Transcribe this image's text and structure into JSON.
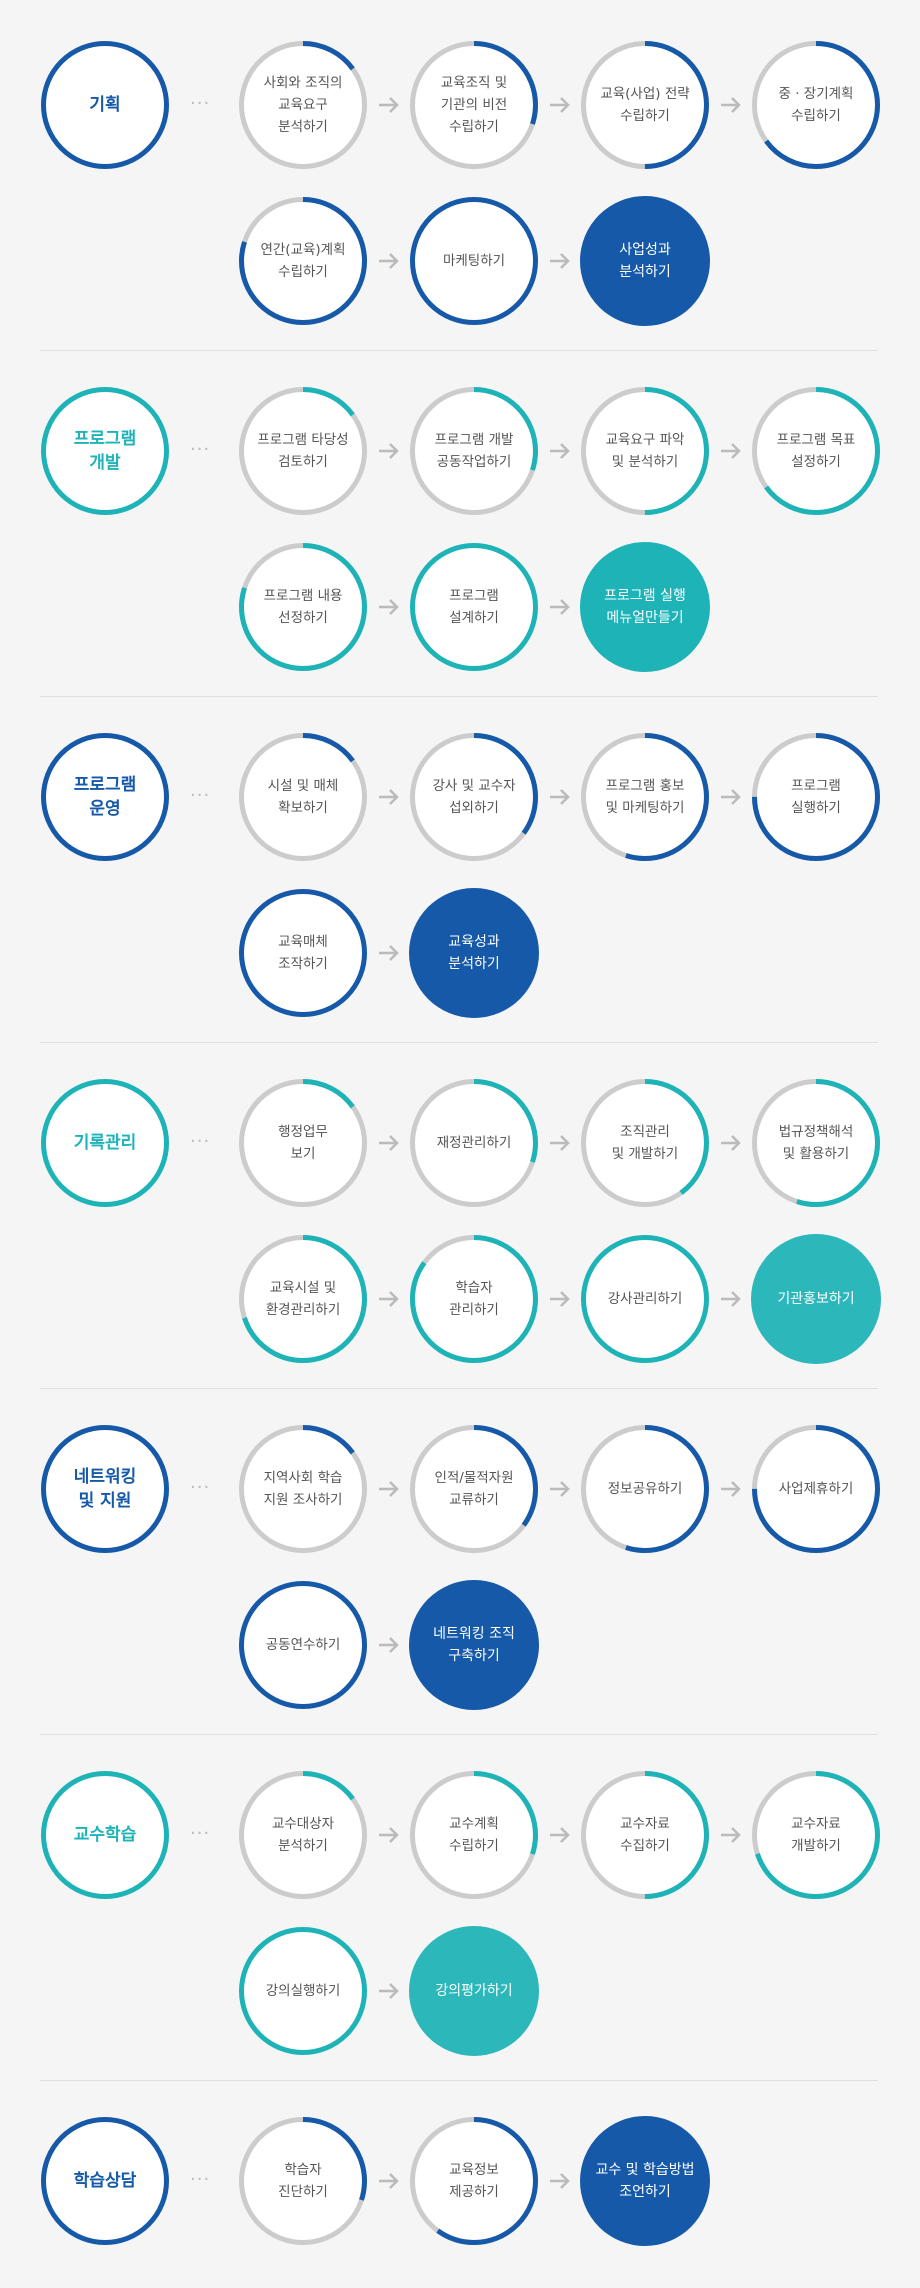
{
  "colors": {
    "dark_blue": "#1559a8",
    "teal": "#1db3b7",
    "teal_light": "#2cb7bb",
    "ring_gray": "#cccccc",
    "background": "#f5f5f5",
    "arrow": "#bbbbbb"
  },
  "icons": {
    "arrow": "right-arrow-icon",
    "dots": "ellipsis-icon"
  },
  "sections": [
    {
      "id": "planning",
      "title": "기획",
      "color": "dark_blue",
      "steps": [
        {
          "label": "사회와 조직의\n교육요구\n분석하기",
          "progress": 0.15
        },
        {
          "label": "교육조직 및\n기관의 비전\n수립하기",
          "progress": 0.3
        },
        {
          "label": "교육(사업) 전략\n수립하기",
          "progress": 0.5
        },
        {
          "label": "중 · 장기계획\n수립하기",
          "progress": 0.65
        },
        {
          "label": "연간(교육)계획\n수립하기",
          "progress": 0.8
        },
        {
          "label": "마케팅하기",
          "progress": 1.0
        },
        {
          "label": "사업성과\n분석하기",
          "filled": true
        }
      ]
    },
    {
      "id": "program-dev",
      "title": "프로그램\n개발",
      "color": "teal",
      "steps": [
        {
          "label": "프로그램 타당성\n검토하기",
          "progress": 0.15
        },
        {
          "label": "프로그램 개발\n공동작업하기",
          "progress": 0.3
        },
        {
          "label": "교육요구 파악\n및 분석하기",
          "progress": 0.5
        },
        {
          "label": "프로그램 목표\n설정하기",
          "progress": 0.65
        },
        {
          "label": "프로그램 내용\n선정하기",
          "progress": 0.8
        },
        {
          "label": "프로그램\n설계하기",
          "progress": 1.0
        },
        {
          "label": "프로그램 실행\n메뉴얼만들기",
          "filled": true
        }
      ]
    },
    {
      "id": "program-ops",
      "title": "프로그램\n운영",
      "color": "dark_blue",
      "steps": [
        {
          "label": "시설 및 매체\n확보하기",
          "progress": 0.15
        },
        {
          "label": "강사 및 교수자\n섭외하기",
          "progress": 0.35
        },
        {
          "label": "프로그램 홍보\n및 마케팅하기",
          "progress": 0.55
        },
        {
          "label": "프로그램\n실행하기",
          "progress": 0.75
        },
        {
          "label": "교육매체\n조작하기",
          "progress": 1.0
        },
        {
          "label": "교육성과\n분석하기",
          "filled": true
        }
      ]
    },
    {
      "id": "records",
      "title": "기록관리",
      "color": "teal",
      "steps": [
        {
          "label": "행정업무\n보기",
          "progress": 0.15
        },
        {
          "label": "재정관리하기",
          "progress": 0.3
        },
        {
          "label": "조직관리\n및 개발하기",
          "progress": 0.4
        },
        {
          "label": "법규정책해석\n및 활용하기",
          "progress": 0.55
        },
        {
          "label": "교육시설 및\n환경관리하기",
          "progress": 0.7
        },
        {
          "label": "학습자\n관리하기",
          "progress": 0.85
        },
        {
          "label": "강사관리하기",
          "progress": 1.0
        },
        {
          "label": "기관홍보하기",
          "filled": true
        }
      ]
    },
    {
      "id": "networking",
      "title": "네트워킹\n및 지원",
      "color": "dark_blue",
      "steps": [
        {
          "label": "지역사회 학습\n지원 조사하기",
          "progress": 0.15
        },
        {
          "label": "인적/물적자원\n교류하기",
          "progress": 0.35
        },
        {
          "label": "정보공유하기",
          "progress": 0.55
        },
        {
          "label": "사업제휴하기",
          "progress": 0.75
        },
        {
          "label": "공동연수하기",
          "progress": 1.0
        },
        {
          "label": "네트워킹 조직\n구축하기",
          "filled": true
        }
      ]
    },
    {
      "id": "teaching",
      "title": "교수학습",
      "color": "teal",
      "steps": [
        {
          "label": "교수대상자\n분석하기",
          "progress": 0.15
        },
        {
          "label": "교수계획\n수립하기",
          "progress": 0.3
        },
        {
          "label": "교수자료\n수집하기",
          "progress": 0.5
        },
        {
          "label": "교수자료\n개발하기",
          "progress": 0.7
        },
        {
          "label": "강의실행하기",
          "progress": 1.0
        },
        {
          "label": "강의평가하기",
          "filled": true
        }
      ]
    },
    {
      "id": "counseling",
      "title": "학습상담",
      "color": "dark_blue",
      "steps": [
        {
          "label": "학습자\n진단하기",
          "progress": 0.3
        },
        {
          "label": "교육정보\n제공하기",
          "progress": 0.6
        },
        {
          "label": "교수 및 학습방법\n조언하기",
          "filled": true
        }
      ]
    }
  ]
}
